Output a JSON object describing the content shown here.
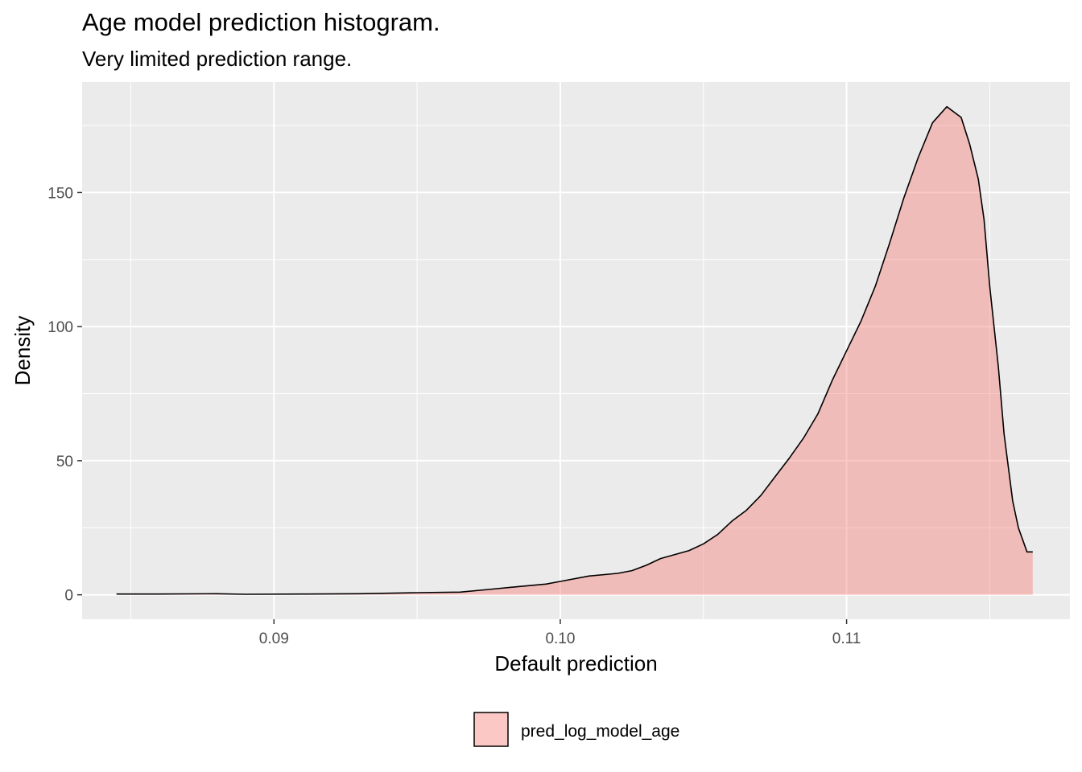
{
  "chart_data": {
    "type": "area",
    "title": "Age model prediction histogram.",
    "subtitle": "Very limited prediction range.",
    "xlabel": "Default prediction",
    "ylabel": "Density",
    "xlim": [
      0.0833,
      0.1178
    ],
    "ylim": [
      -9.1,
      191.2
    ],
    "x_major_ticks": [
      0.09,
      0.1,
      0.11
    ],
    "x_minor_ticks": [
      0.085,
      0.095,
      0.105,
      0.115
    ],
    "y_major_ticks": [
      0,
      50,
      100,
      150
    ],
    "y_minor_ticks": [
      25,
      75,
      125,
      175
    ],
    "grid": true,
    "legend_position": "bottom",
    "series": [
      {
        "name": "pred_log_model_age",
        "fill": "#f8766d",
        "fill_opacity": 0.4,
        "stroke": "#000000",
        "x": [
          0.0845,
          0.086,
          0.088,
          0.089,
          0.091,
          0.093,
          0.095,
          0.0965,
          0.0975,
          0.0985,
          0.0995,
          0.1,
          0.101,
          0.102,
          0.1025,
          0.103,
          0.1035,
          0.104,
          0.1045,
          0.105,
          0.1055,
          0.106,
          0.1065,
          0.107,
          0.1075,
          0.108,
          0.1085,
          0.109,
          0.1095,
          0.11,
          0.1105,
          0.111,
          0.1115,
          0.112,
          0.1125,
          0.113,
          0.1135,
          0.114,
          0.1143,
          0.1146,
          0.1148,
          0.115,
          0.1153,
          0.1155,
          0.1158,
          0.116,
          0.1163,
          0.1165
        ],
        "y": [
          0.3,
          0.3,
          0.4,
          0.2,
          0.3,
          0.4,
          0.8,
          1.0,
          2.0,
          3.0,
          4.0,
          5.0,
          7.0,
          8.0,
          9.0,
          11.0,
          13.5,
          15.0,
          16.5,
          19.0,
          22.5,
          27.5,
          31.5,
          37.0,
          44.0,
          51.0,
          58.5,
          67.5,
          80.0,
          91.0,
          102.0,
          115.0,
          131.0,
          148.0,
          163.0,
          176.0,
          182.0,
          178.0,
          168.0,
          155.0,
          140.0,
          115.0,
          85.0,
          60.0,
          35.0,
          25.0,
          16.0,
          16.0
        ]
      }
    ]
  }
}
